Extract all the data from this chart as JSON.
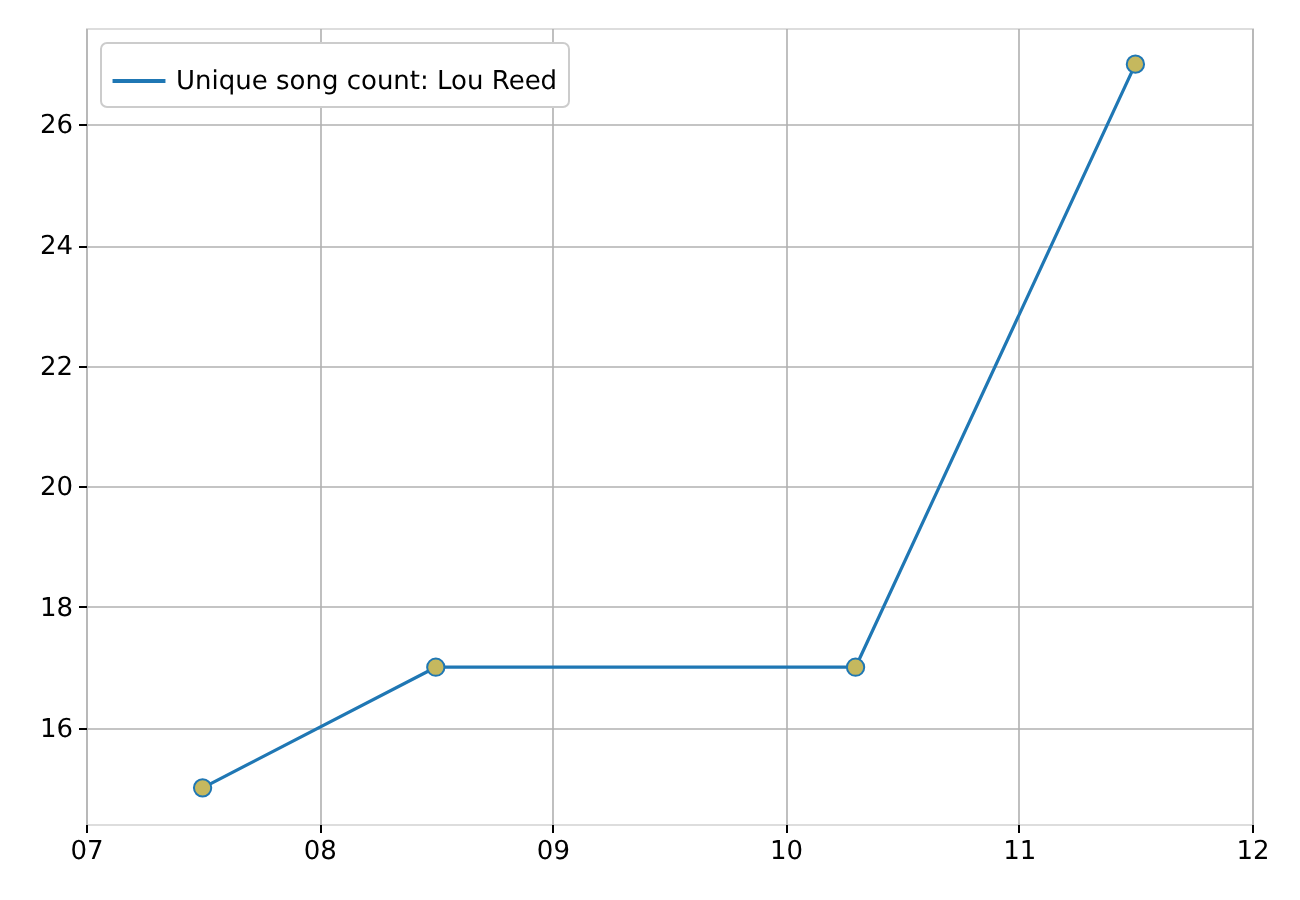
{
  "chart_data": {
    "type": "line",
    "x": [
      7.5,
      8.5,
      10.3,
      11.5
    ],
    "series": [
      {
        "name": "Unique song count: Lou Reed",
        "color": "#1f77b4",
        "colors": [
          "#c5b85e",
          "#c5b85e",
          "#c5b85e",
          "#c5b85e"
        ],
        "values": [
          15,
          17,
          17,
          27
        ]
      }
    ],
    "xlim": [
      7,
      12
    ],
    "xticks": [
      {
        "value": 7,
        "label": "07"
      },
      {
        "value": 8,
        "label": "08"
      },
      {
        "value": 9,
        "label": "09"
      },
      10,
      11,
      12
    ],
    "ylim": [
      14.4,
      27.6
    ],
    "yticks": [
      16,
      18,
      20,
      22,
      24,
      26
    ],
    "grid": true,
    "legend": "top left",
    "marker": "circle",
    "line_style": "solid"
  }
}
